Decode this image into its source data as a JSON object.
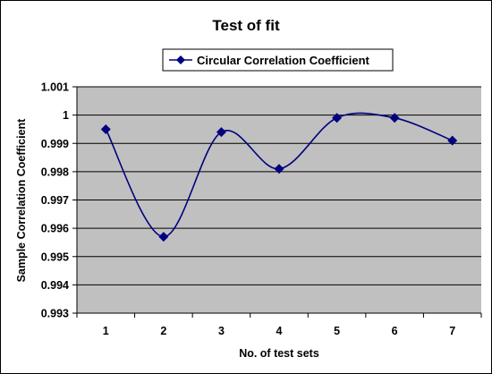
{
  "chart_data": {
    "type": "line",
    "smooth": true,
    "title": "Test of fit",
    "xlabel": "No. of test sets",
    "ylabel": "Sample Correlation Coefficient",
    "categories": [
      "1",
      "2",
      "3",
      "4",
      "5",
      "6",
      "7"
    ],
    "series": [
      {
        "name": "Circular Correlation Coefficient",
        "values": [
          0.9995,
          0.9957,
          0.9994,
          0.9981,
          0.9999,
          0.9999,
          0.9991
        ],
        "color": "#000080",
        "marker": "diamond"
      }
    ],
    "ylim": [
      0.993,
      1.001
    ],
    "yticks": [
      "0.993",
      "0.994",
      "0.995",
      "0.996",
      "0.997",
      "0.998",
      "0.999",
      "1",
      "1.001"
    ],
    "grid": true,
    "legend": "top-right",
    "colors": {
      "plot_background": "#C0C0C0",
      "gridline": "#000000",
      "series": "#000080"
    }
  }
}
